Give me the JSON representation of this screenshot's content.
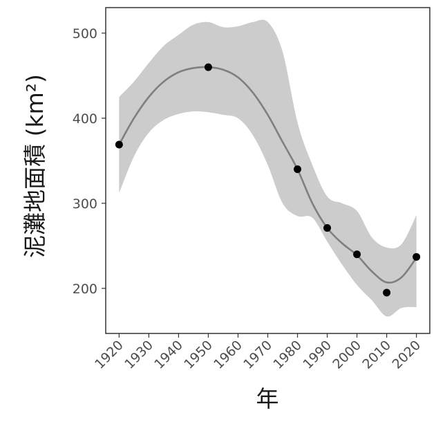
{
  "chart_data": {
    "type": "scatter",
    "x": [
      1920,
      1950,
      1980,
      1990,
      2000,
      2010,
      2020
    ],
    "y": [
      369,
      460,
      340,
      271,
      240,
      195,
      237
    ],
    "xlabel": "年",
    "ylabel": "泥灘地面積 (km²)",
    "xticks": [
      "1920",
      "1930",
      "1940",
      "1950",
      "1960",
      "1970",
      "1980",
      "1990",
      "2000",
      "2010",
      "2020"
    ],
    "yticks": [
      "200",
      "300",
      "400",
      "500"
    ],
    "xlim": [
      1915.5,
      2024.5
    ],
    "ylim": [
      147,
      530
    ],
    "grid": false,
    "legend": "none",
    "trend": {
      "x": [
        1920,
        1925,
        1930,
        1935,
        1940,
        1945,
        1950,
        1955,
        1960,
        1965,
        1970,
        1975,
        1980,
        1985,
        1990,
        1995,
        2000,
        2005,
        2010,
        2015,
        2020
      ],
      "y": [
        369,
        400,
        425,
        443,
        454,
        459,
        460,
        457,
        448,
        430,
        404,
        372,
        340,
        300,
        271,
        253,
        239,
        220,
        207,
        213,
        236
      ],
      "upper": [
        425,
        443,
        465,
        485,
        498,
        510,
        513,
        507,
        508,
        513,
        513,
        478,
        395,
        345,
        308,
        300,
        291,
        260,
        248,
        252,
        286
      ],
      "lower": [
        312,
        355,
        383,
        398,
        405,
        408,
        407,
        404,
        400,
        380,
        345,
        300,
        285,
        283,
        255,
        228,
        204,
        186,
        167,
        177,
        178
      ]
    },
    "colors": {
      "points": "#000000",
      "trend_line": "#7f7f7f",
      "confidence_band": "#cccccc",
      "frame": "#333333"
    }
  }
}
